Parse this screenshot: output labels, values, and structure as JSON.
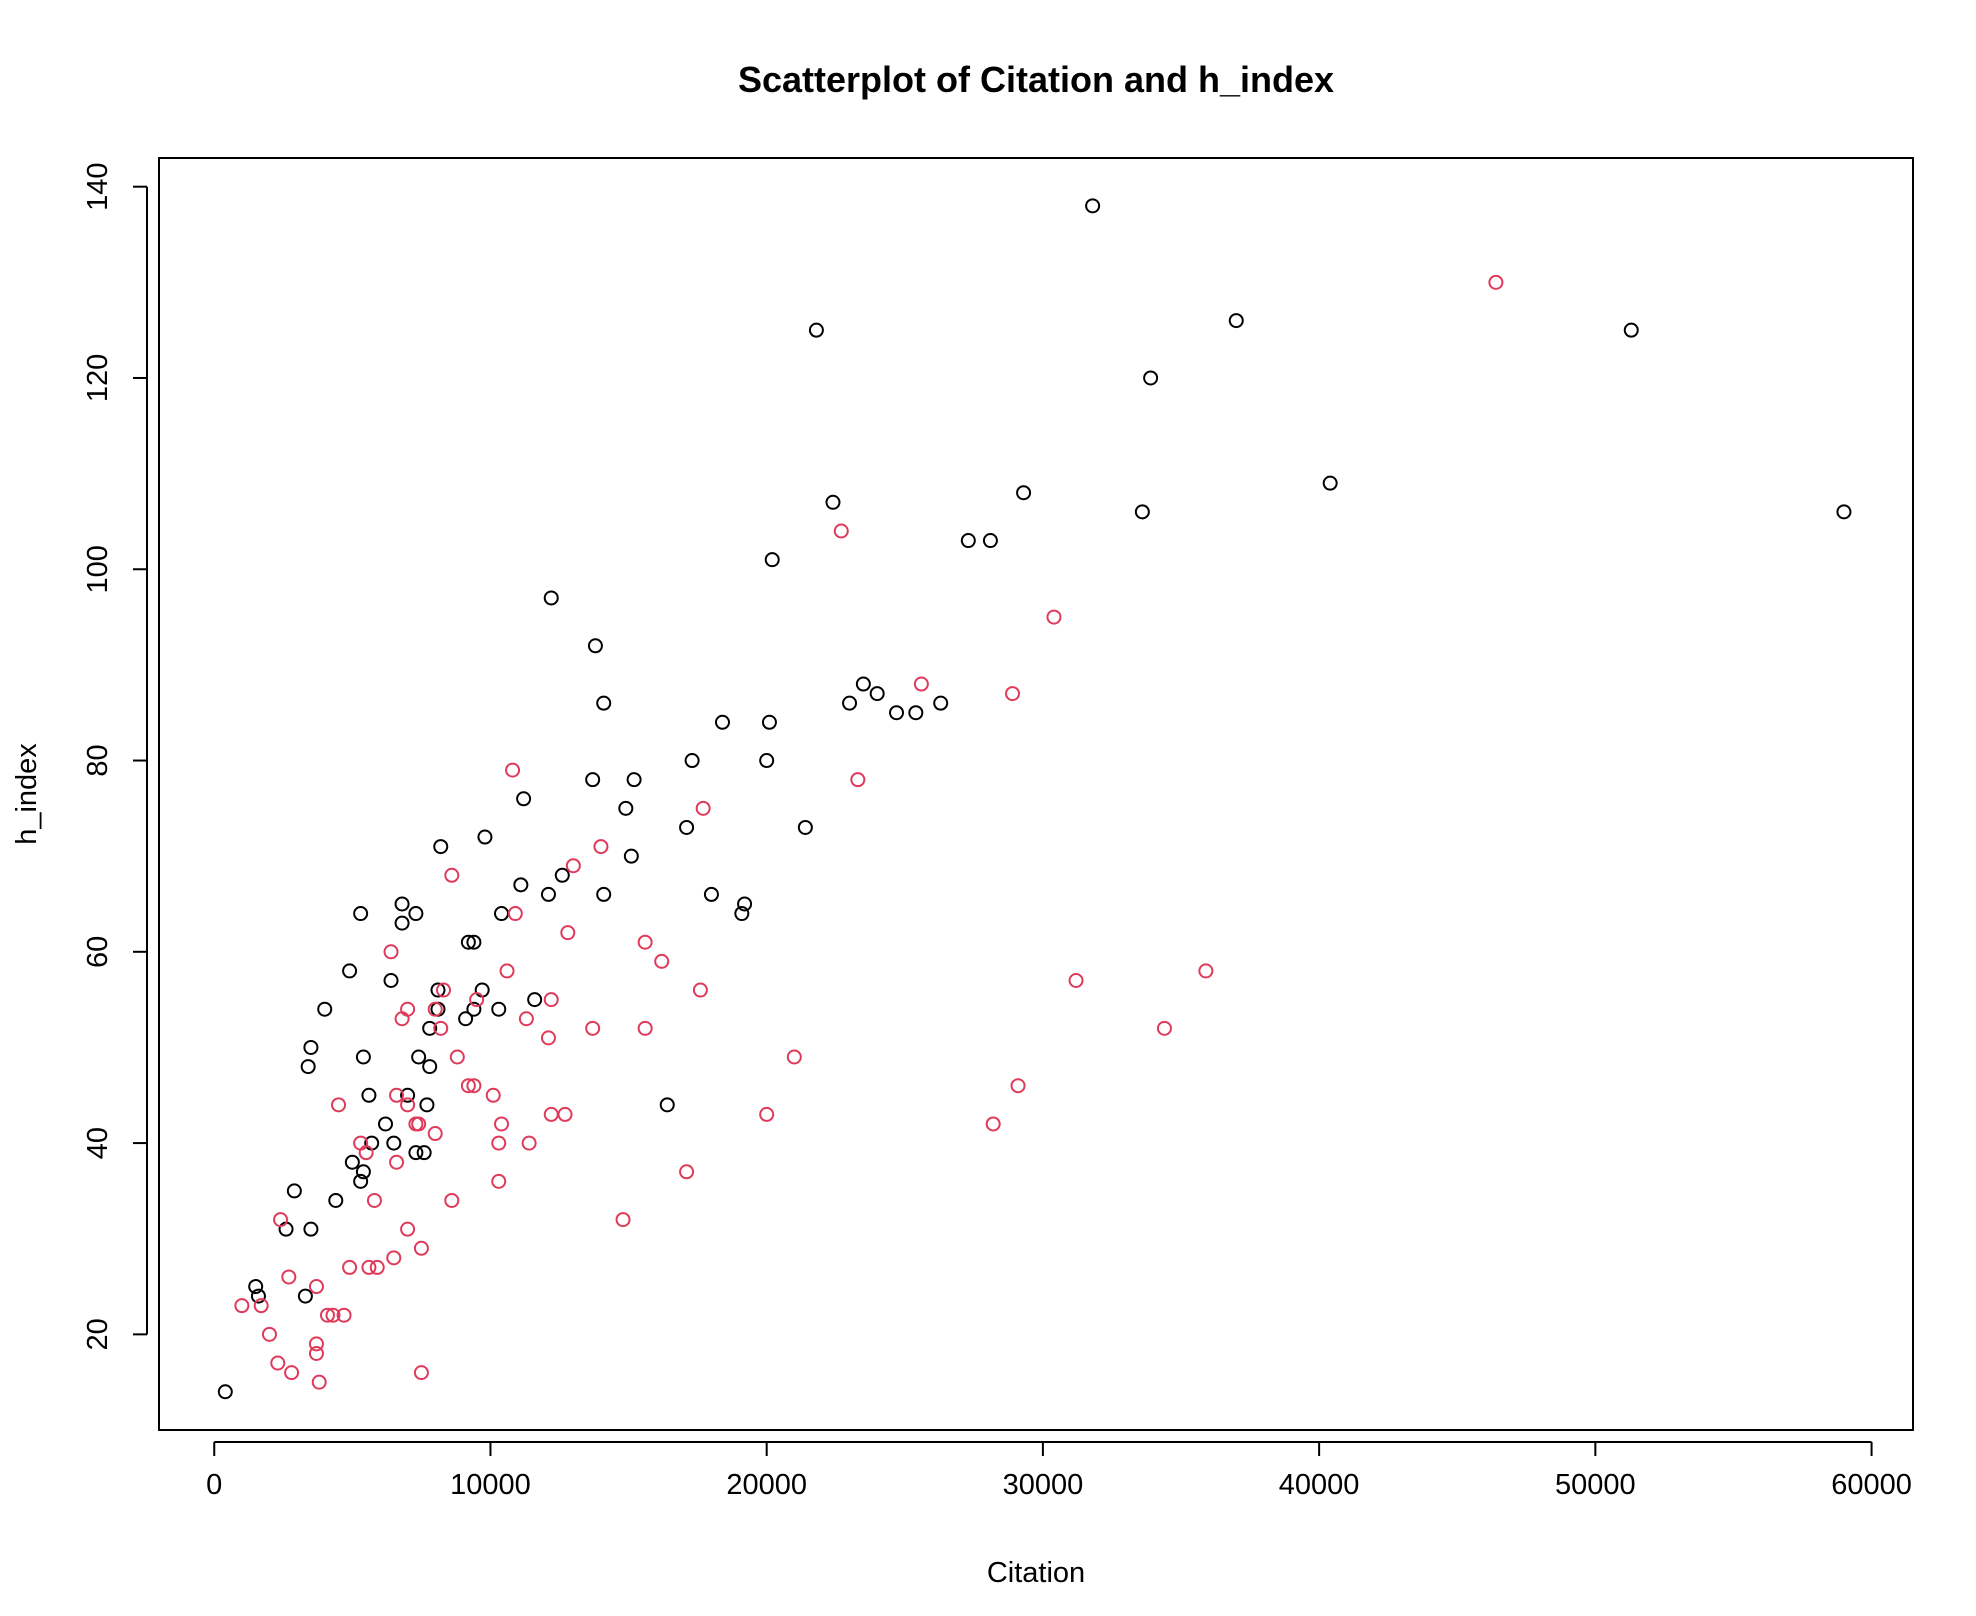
{
  "chart_data": {
    "type": "scatter",
    "title": "Scatterplot of Citation and h_index",
    "xlabel": "Citation",
    "ylabel": "h_index",
    "xlim": [
      -2000,
      61500
    ],
    "ylim": [
      10,
      143
    ],
    "xticks": [
      0,
      10000,
      20000,
      30000,
      40000,
      50000,
      60000
    ],
    "yticks": [
      20,
      40,
      60,
      80,
      100,
      120,
      140
    ],
    "grid": false,
    "legend": "none",
    "marker": "open-circle",
    "series": [
      {
        "color": "#000000",
        "points": [
          [
            400,
            14
          ],
          [
            1500,
            25
          ],
          [
            1600,
            24
          ],
          [
            2600,
            31
          ],
          [
            2900,
            35
          ],
          [
            3300,
            24
          ],
          [
            3400,
            48
          ],
          [
            3500,
            50
          ],
          [
            3500,
            31
          ],
          [
            4000,
            54
          ],
          [
            4400,
            34
          ],
          [
            4900,
            58
          ],
          [
            5000,
            38
          ],
          [
            5300,
            36
          ],
          [
            5300,
            64
          ],
          [
            5400,
            49
          ],
          [
            5400,
            37
          ],
          [
            5600,
            45
          ],
          [
            5700,
            40
          ],
          [
            6200,
            42
          ],
          [
            6400,
            57
          ],
          [
            6500,
            40
          ],
          [
            6800,
            65
          ],
          [
            6800,
            63
          ],
          [
            7000,
            45
          ],
          [
            7300,
            39
          ],
          [
            7300,
            64
          ],
          [
            7400,
            49
          ],
          [
            7600,
            39
          ],
          [
            7700,
            44
          ],
          [
            7800,
            52
          ],
          [
            7800,
            48
          ],
          [
            8100,
            56
          ],
          [
            8100,
            54
          ],
          [
            8200,
            71
          ],
          [
            9100,
            53
          ],
          [
            9200,
            61
          ],
          [
            9400,
            61
          ],
          [
            9400,
            54
          ],
          [
            9700,
            56
          ],
          [
            9800,
            72
          ],
          [
            10300,
            54
          ],
          [
            10400,
            64
          ],
          [
            11100,
            67
          ],
          [
            11200,
            76
          ],
          [
            11600,
            55
          ],
          [
            12100,
            66
          ],
          [
            12200,
            97
          ],
          [
            12600,
            68
          ],
          [
            13700,
            78
          ],
          [
            13800,
            92
          ],
          [
            14100,
            66
          ],
          [
            14100,
            86
          ],
          [
            14900,
            75
          ],
          [
            15100,
            70
          ],
          [
            15200,
            78
          ],
          [
            16400,
            44
          ],
          [
            17100,
            73
          ],
          [
            17300,
            80
          ],
          [
            18000,
            66
          ],
          [
            18400,
            84
          ],
          [
            19100,
            64
          ],
          [
            19200,
            65
          ],
          [
            20000,
            80
          ],
          [
            20100,
            84
          ],
          [
            20200,
            101
          ],
          [
            21400,
            73
          ],
          [
            21800,
            125
          ],
          [
            22400,
            107
          ],
          [
            23000,
            86
          ],
          [
            23500,
            88
          ],
          [
            24000,
            87
          ],
          [
            24700,
            85
          ],
          [
            25400,
            85
          ],
          [
            26300,
            86
          ],
          [
            27300,
            103
          ],
          [
            28100,
            103
          ],
          [
            29300,
            108
          ],
          [
            31800,
            138
          ],
          [
            33600,
            106
          ],
          [
            33900,
            120
          ],
          [
            37000,
            126
          ],
          [
            40400,
            109
          ],
          [
            51300,
            125
          ],
          [
            59000,
            106
          ]
        ]
      },
      {
        "color": "#DF3A5A",
        "points": [
          [
            1000,
            23
          ],
          [
            1700,
            23
          ],
          [
            2000,
            20
          ],
          [
            2300,
            17
          ],
          [
            2400,
            32
          ],
          [
            2700,
            26
          ],
          [
            2800,
            16
          ],
          [
            3700,
            25
          ],
          [
            3700,
            19
          ],
          [
            3700,
            18
          ],
          [
            3800,
            15
          ],
          [
            4100,
            22
          ],
          [
            4300,
            22
          ],
          [
            4500,
            44
          ],
          [
            4700,
            22
          ],
          [
            4900,
            27
          ],
          [
            5300,
            40
          ],
          [
            5500,
            39
          ],
          [
            5600,
            27
          ],
          [
            5800,
            34
          ],
          [
            5900,
            27
          ],
          [
            6400,
            60
          ],
          [
            6500,
            28
          ],
          [
            6600,
            45
          ],
          [
            6600,
            38
          ],
          [
            6800,
            53
          ],
          [
            7000,
            54
          ],
          [
            7000,
            44
          ],
          [
            7000,
            31
          ],
          [
            7300,
            42
          ],
          [
            7400,
            42
          ],
          [
            7500,
            16
          ],
          [
            7500,
            29
          ],
          [
            8000,
            54
          ],
          [
            8000,
            41
          ],
          [
            8200,
            52
          ],
          [
            8300,
            56
          ],
          [
            8600,
            68
          ],
          [
            8600,
            34
          ],
          [
            8800,
            49
          ],
          [
            9200,
            46
          ],
          [
            9400,
            46
          ],
          [
            9500,
            55
          ],
          [
            10100,
            45
          ],
          [
            10300,
            40
          ],
          [
            10300,
            36
          ],
          [
            10400,
            42
          ],
          [
            10600,
            58
          ],
          [
            10800,
            79
          ],
          [
            10900,
            64
          ],
          [
            11300,
            53
          ],
          [
            11400,
            40
          ],
          [
            12100,
            51
          ],
          [
            12200,
            55
          ],
          [
            12200,
            43
          ],
          [
            12700,
            43
          ],
          [
            12800,
            62
          ],
          [
            13000,
            69
          ],
          [
            13700,
            52
          ],
          [
            14000,
            71
          ],
          [
            14800,
            32
          ],
          [
            15600,
            52
          ],
          [
            15600,
            61
          ],
          [
            16200,
            59
          ],
          [
            17100,
            37
          ],
          [
            17600,
            56
          ],
          [
            17700,
            75
          ],
          [
            20000,
            43
          ],
          [
            21000,
            49
          ],
          [
            22700,
            104
          ],
          [
            23300,
            78
          ],
          [
            25600,
            88
          ],
          [
            28200,
            42
          ],
          [
            28900,
            87
          ],
          [
            29100,
            46
          ],
          [
            30400,
            95
          ],
          [
            31200,
            57
          ],
          [
            34400,
            52
          ],
          [
            35900,
            58
          ],
          [
            46400,
            130
          ]
        ]
      }
    ]
  }
}
